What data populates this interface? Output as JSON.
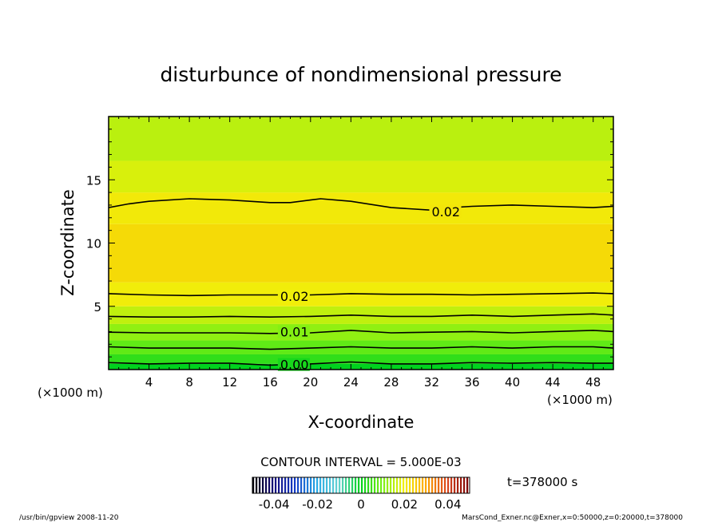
{
  "chart_data": {
    "type": "heatmap",
    "title": "disturbunce of nondimensional pressure",
    "xlabel": "X-coordinate",
    "ylabel": "Z-coordinate",
    "x_unit_left": "(×1000 m)",
    "x_unit_right": "(×1000 m)",
    "xlim": [
      0,
      50
    ],
    "ylim": [
      0,
      20
    ],
    "x_ticks": [
      4,
      8,
      12,
      16,
      20,
      24,
      28,
      32,
      36,
      40,
      44,
      48
    ],
    "y_ticks": [
      5,
      10,
      15
    ],
    "contour_interval_text": "CONTOUR INTERVAL = 5.000E-03",
    "time_text": "t=378000 s",
    "colorbar": {
      "range": [
        -0.05,
        0.05
      ],
      "tick_labels": [
        "-0.04",
        "-0.02",
        "0",
        "0.02",
        "0.04"
      ],
      "tick_values": [
        -0.04,
        -0.02,
        0,
        0.02,
        0.04
      ]
    },
    "contour_labels": [
      {
        "text": "0.02",
        "x": 32,
        "z": 12.5
      },
      {
        "text": "0.02",
        "x": 17,
        "z": 5.8
      },
      {
        "text": "0.01",
        "x": 17,
        "z": 3.0
      },
      {
        "text": "0.00",
        "x": 17,
        "z": 0.4
      }
    ],
    "contours": [
      {
        "level": 0.0,
        "x": [
          0,
          4,
          8,
          12,
          16,
          20,
          24,
          28,
          32,
          36,
          40,
          44,
          48,
          50
        ],
        "z": [
          0.55,
          0.45,
          0.5,
          0.5,
          0.35,
          0.45,
          0.6,
          0.45,
          0.45,
          0.55,
          0.5,
          0.55,
          0.5,
          0.5
        ]
      },
      {
        "level": 0.005,
        "x": [
          0,
          4,
          8,
          12,
          16,
          20,
          24,
          28,
          32,
          36,
          40,
          44,
          48,
          50
        ],
        "z": [
          1.8,
          1.7,
          1.7,
          1.7,
          1.6,
          1.7,
          1.8,
          1.7,
          1.7,
          1.8,
          1.7,
          1.8,
          1.8,
          1.7
        ]
      },
      {
        "level": 0.01,
        "x": [
          0,
          4,
          8,
          12,
          16,
          20,
          24,
          28,
          32,
          36,
          40,
          44,
          48,
          50
        ],
        "z": [
          2.95,
          2.9,
          2.9,
          2.9,
          2.85,
          2.9,
          3.1,
          2.9,
          2.95,
          3.0,
          2.9,
          3.0,
          3.1,
          3.0
        ]
      },
      {
        "level": 0.015,
        "x": [
          0,
          4,
          8,
          12,
          16,
          20,
          24,
          28,
          32,
          36,
          40,
          44,
          48,
          50
        ],
        "z": [
          4.2,
          4.15,
          4.15,
          4.2,
          4.15,
          4.2,
          4.3,
          4.2,
          4.2,
          4.3,
          4.2,
          4.3,
          4.4,
          4.3
        ]
      },
      {
        "level": 0.02,
        "x": [
          0,
          4,
          8,
          12,
          16,
          20,
          24,
          28,
          32,
          36,
          40,
          44,
          48,
          50
        ],
        "z": [
          6.0,
          5.9,
          5.85,
          5.9,
          5.9,
          5.9,
          6.0,
          5.95,
          5.95,
          5.9,
          5.95,
          6.0,
          6.05,
          6.0
        ]
      },
      {
        "level": 0.02,
        "x": [
          0,
          2,
          4,
          8,
          12,
          16,
          18,
          20,
          21,
          24,
          28,
          32,
          34,
          36,
          40,
          44,
          48,
          50
        ],
        "z": [
          12.8,
          13.1,
          13.3,
          13.5,
          13.4,
          13.2,
          13.2,
          13.4,
          13.5,
          13.3,
          12.8,
          12.6,
          12.8,
          12.9,
          13.0,
          12.9,
          12.8,
          12.9
        ]
      }
    ]
  },
  "footer": {
    "left": "/usr/bin/gpview   2008-11-20",
    "right": "MarsCond_Exner.nc@Exner,x=0:50000,z=0:20000,t=378000"
  }
}
